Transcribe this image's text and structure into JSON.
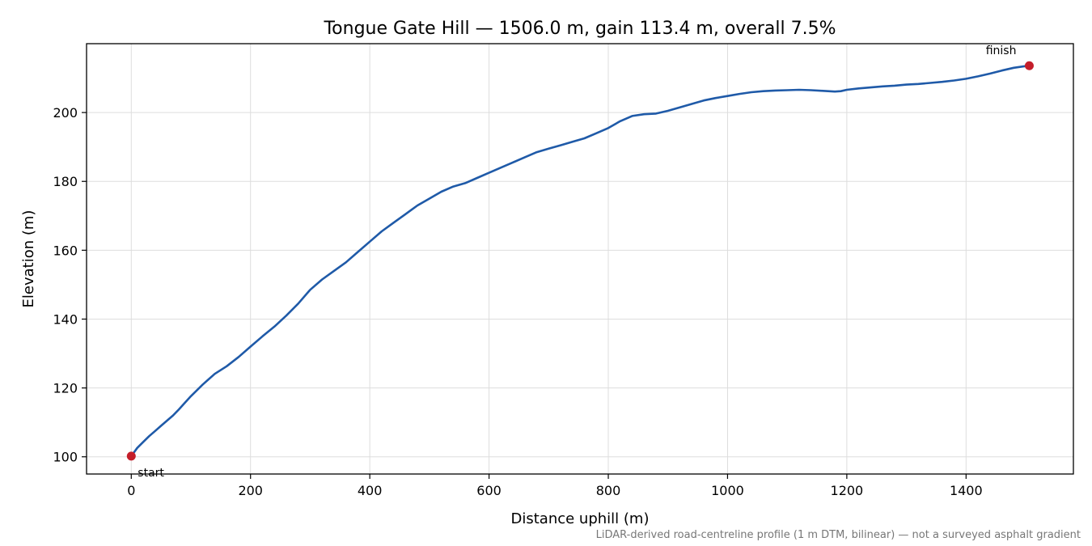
{
  "chart_data": {
    "type": "line",
    "title": "Tongue Gate Hill — 1506.0 m, gain 113.4 m, overall 7.5%",
    "xlabel": "Distance uphill (m)",
    "ylabel": "Elevation (m)",
    "xlim": [
      -75,
      1580
    ],
    "ylim": [
      95,
      220
    ],
    "xticks": [
      0,
      200,
      400,
      600,
      800,
      1000,
      1200,
      1400
    ],
    "yticks": [
      100,
      120,
      140,
      160,
      180,
      200
    ],
    "grid": true,
    "series": [
      {
        "color": "#1f5aa8",
        "x": [
          0,
          10,
          20,
          30,
          40,
          50,
          60,
          70,
          80,
          90,
          100,
          120,
          140,
          160,
          180,
          200,
          220,
          240,
          260,
          280,
          300,
          320,
          340,
          360,
          380,
          400,
          420,
          440,
          460,
          480,
          500,
          520,
          540,
          560,
          580,
          600,
          620,
          640,
          660,
          680,
          700,
          720,
          740,
          760,
          780,
          800,
          820,
          840,
          860,
          880,
          900,
          920,
          940,
          960,
          980,
          1000,
          1020,
          1040,
          1060,
          1080,
          1100,
          1120,
          1140,
          1160,
          1180,
          1190,
          1200,
          1220,
          1240,
          1260,
          1280,
          1300,
          1320,
          1340,
          1360,
          1380,
          1400,
          1420,
          1440,
          1460,
          1480,
          1500,
          1506
        ],
        "y": [
          100.2,
          102.6,
          104.3,
          106.0,
          107.5,
          109.0,
          110.5,
          112.0,
          113.8,
          115.7,
          117.6,
          121.0,
          124.1,
          126.3,
          129.0,
          132.0,
          135.0,
          137.8,
          141.0,
          144.5,
          148.5,
          151.5,
          154.0,
          156.5,
          159.5,
          162.5,
          165.5,
          168.0,
          170.5,
          173.0,
          175.0,
          177.0,
          178.5,
          179.5,
          181.0,
          182.5,
          184.0,
          185.5,
          187.0,
          188.5,
          189.5,
          190.5,
          191.5,
          192.5,
          194.0,
          195.5,
          197.5,
          199.0,
          199.5,
          199.7,
          200.5,
          201.5,
          202.5,
          203.5,
          204.2,
          204.8,
          205.4,
          205.9,
          206.2,
          206.4,
          206.5,
          206.6,
          206.5,
          206.3,
          206.1,
          206.2,
          206.6,
          207.0,
          207.3,
          207.6,
          207.8,
          208.1,
          208.3,
          208.6,
          208.9,
          209.3,
          209.8,
          210.5,
          211.3,
          212.2,
          213.0,
          213.5,
          213.6
        ]
      }
    ],
    "markers": [
      {
        "label": "start",
        "x": 0,
        "y": 100.2,
        "color": "#c41e2a"
      },
      {
        "label": "finish",
        "x": 1506,
        "y": 213.6,
        "color": "#c41e2a"
      }
    ],
    "footnote": "LiDAR-derived road-centreline profile (1 m DTM, bilinear) — not a surveyed asphalt gradient"
  }
}
